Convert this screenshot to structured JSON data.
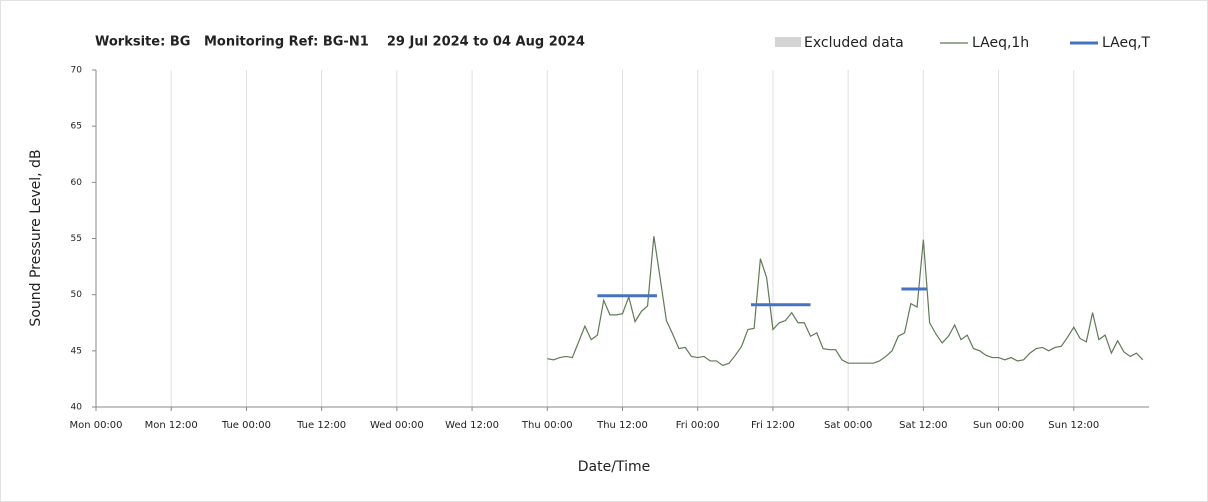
{
  "chart_data": {
    "type": "line",
    "title": "Worksite: BG   Monitoring Ref: BG-N1    29 Jul 2024 to 04 Aug 2024",
    "xlabel": "Date/Time",
    "ylabel": "Sound Pressure Level, dB",
    "xlim": [
      0,
      168
    ],
    "xticks": [
      {
        "value": 0,
        "label": "Mon 00:00"
      },
      {
        "value": 12,
        "label": "Mon 12:00"
      },
      {
        "value": 24,
        "label": "Tue 00:00"
      },
      {
        "value": 36,
        "label": "Tue 12:00"
      },
      {
        "value": 48,
        "label": "Wed 00:00"
      },
      {
        "value": 60,
        "label": "Wed 12:00"
      },
      {
        "value": 72,
        "label": "Thu 00:00"
      },
      {
        "value": 84,
        "label": "Thu 12:00"
      },
      {
        "value": 96,
        "label": "Fri 00:00"
      },
      {
        "value": 108,
        "label": "Fri 12:00"
      },
      {
        "value": 120,
        "label": "Sat 00:00"
      },
      {
        "value": 132,
        "label": "Sat 12:00"
      },
      {
        "value": 144,
        "label": "Sun 00:00"
      },
      {
        "value": 156,
        "label": "Sun 12:00"
      }
    ],
    "ylim": [
      40,
      70
    ],
    "yticks": [
      40,
      45,
      50,
      55,
      60,
      65,
      70
    ],
    "grid": "x",
    "excluded": {
      "name": "Excluded data",
      "color": "#d4d4d4"
    },
    "series": [
      {
        "name": "LAeq,1h",
        "color": "#5f7a55",
        "width": 1.2,
        "x": [
          72,
          73,
          74,
          75,
          76,
          77,
          78,
          79,
          80,
          81,
          82,
          83,
          84,
          85,
          86,
          87,
          88,
          89,
          90,
          91,
          92,
          93,
          94,
          95,
          96,
          97,
          98,
          99,
          100,
          101,
          102,
          103,
          104,
          105,
          106,
          107,
          108,
          109,
          110,
          111,
          112,
          113,
          114,
          115,
          116,
          117,
          118,
          119,
          120,
          121,
          122,
          123,
          124,
          125,
          126,
          127,
          128,
          129,
          130,
          131,
          132,
          133,
          134,
          135,
          136,
          137,
          138,
          139,
          140,
          141,
          142,
          143,
          144,
          145,
          146,
          147,
          148,
          149,
          150,
          151,
          152,
          153,
          154,
          155,
          156,
          157,
          158,
          159,
          160,
          161,
          162,
          163,
          164,
          165,
          166,
          167
        ],
        "values": [
          44.3,
          44.2,
          44.4,
          44.5,
          44.4,
          45.8,
          47.2,
          46.0,
          46.4,
          49.5,
          48.2,
          48.2,
          48.3,
          49.8,
          47.6,
          48.5,
          49.0,
          55.2,
          51.5,
          47.7,
          46.5,
          45.2,
          45.3,
          44.5,
          44.4,
          44.5,
          44.1,
          44.1,
          43.7,
          43.9,
          44.6,
          45.4,
          46.9,
          47.0,
          53.2,
          51.5,
          46.9,
          47.5,
          47.7,
          48.4,
          47.5,
          47.5,
          46.3,
          46.6,
          45.2,
          45.1,
          45.1,
          44.2,
          43.9,
          43.9,
          43.9,
          43.9,
          43.9,
          44.1,
          44.5,
          45.0,
          46.3,
          46.6,
          49.2,
          48.9,
          54.9,
          47.5,
          46.5,
          45.7,
          46.3,
          47.3,
          46.0,
          46.4,
          45.2,
          45.0,
          44.6,
          44.4,
          44.4,
          44.2,
          44.4,
          44.1,
          44.2,
          44.8,
          45.2,
          45.3,
          45.0,
          45.3,
          45.4,
          46.2,
          47.1,
          46.1,
          45.8,
          48.4,
          46.0,
          46.4,
          44.8,
          45.9,
          44.9,
          44.5,
          44.8,
          44.2
        ]
      },
      {
        "name": "LAeq,T",
        "color": "#4472c4",
        "width": 3,
        "x": [
          80,
          89.5,
          90,
          104.5,
          114,
          115,
          128.5,
          132.5
        ],
        "values": [
          49.9,
          49.9,
          null,
          49.1,
          49.1,
          null,
          50.5,
          50.5
        ]
      }
    ]
  }
}
